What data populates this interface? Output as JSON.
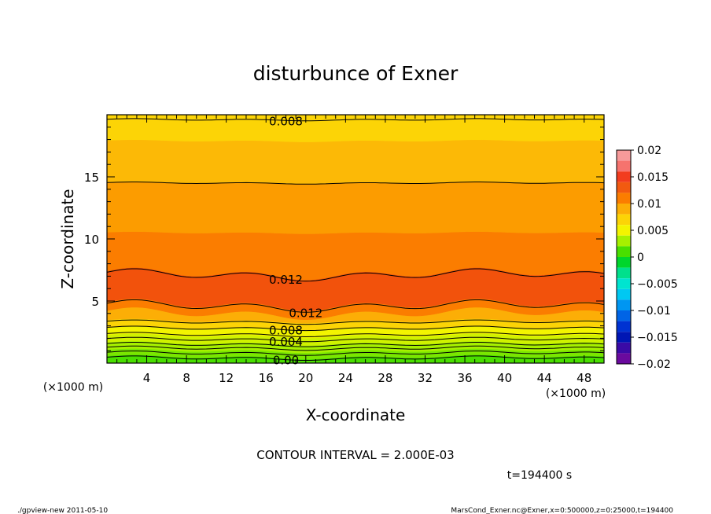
{
  "chart_data": {
    "type": "heatmap",
    "title": "disturbunce of Exner",
    "xlabel": "X-coordinate",
    "ylabel": "Z-coordinate",
    "x_unit_label": "(×1000 m)",
    "y_unit_label": "(×1000 m)",
    "xlim": [
      0,
      50
    ],
    "ylim": [
      0,
      20
    ],
    "x_ticks": [
      4,
      8,
      12,
      16,
      20,
      24,
      28,
      32,
      36,
      40,
      44,
      48
    ],
    "y_ticks": [
      5,
      10,
      15
    ],
    "colorbar": {
      "range": [
        -0.02,
        0.02
      ],
      "tick_labels": [
        "0.02",
        "0.015",
        "0.01",
        "0.005",
        "0",
        "−0.005",
        "−0.01",
        "−0.015",
        "−0.02"
      ],
      "tick_values": [
        0.02,
        0.015,
        0.01,
        0.005,
        0,
        -0.005,
        -0.01,
        -0.015,
        -0.02
      ],
      "bands": [
        {
          "low": 0.018,
          "high": 0.02,
          "color": "#f79a9a"
        },
        {
          "low": 0.016,
          "high": 0.018,
          "color": "#f6736e"
        },
        {
          "low": 0.014,
          "high": 0.016,
          "color": "#f23c1e"
        },
        {
          "low": 0.012,
          "high": 0.014,
          "color": "#f25a10"
        },
        {
          "low": 0.01,
          "high": 0.012,
          "color": "#fb7d00"
        },
        {
          "low": 0.008,
          "high": 0.01,
          "color": "#fcae06"
        },
        {
          "low": 0.006,
          "high": 0.008,
          "color": "#fcd406"
        },
        {
          "low": 0.004,
          "high": 0.006,
          "color": "#f3f400"
        },
        {
          "low": 0.002,
          "high": 0.004,
          "color": "#a6f000"
        },
        {
          "low": 0.0,
          "high": 0.002,
          "color": "#49df00"
        },
        {
          "low": -0.002,
          "high": 0.0,
          "color": "#00d62c"
        },
        {
          "low": -0.004,
          "high": -0.002,
          "color": "#00e08c"
        },
        {
          "low": -0.006,
          "high": -0.004,
          "color": "#00e4d0"
        },
        {
          "low": -0.008,
          "high": -0.006,
          "color": "#00c8f2"
        },
        {
          "low": -0.01,
          "high": -0.008,
          "color": "#0096f2"
        },
        {
          "low": -0.012,
          "high": -0.01,
          "color": "#0064e6"
        },
        {
          "low": -0.014,
          "high": -0.012,
          "color": "#0032d2"
        },
        {
          "low": -0.016,
          "high": -0.014,
          "color": "#0016b4"
        },
        {
          "low": -0.018,
          "high": -0.016,
          "color": "#3a0aa6"
        },
        {
          "low": -0.02,
          "high": -0.018,
          "color": "#6a0a9e"
        }
      ]
    },
    "field_layers": [
      {
        "z_top": 0.5,
        "color": "#49df00"
      },
      {
        "z_top": 1.0,
        "color": "#7ae600"
      },
      {
        "z_top": 1.6,
        "color": "#a6f000"
      },
      {
        "z_top": 2.2,
        "color": "#d0f200"
      },
      {
        "z_top": 2.8,
        "color": "#f3f400"
      },
      {
        "z_top": 3.4,
        "color": "#fcd406"
      },
      {
        "z_top": 4.0,
        "color": "#fcae06"
      },
      {
        "z_top": 4.7,
        "color": "#fb7d00"
      },
      {
        "z_top": 7.2,
        "color": "#f2520c"
      },
      {
        "z_top": 10.5,
        "color": "#fb7d00"
      },
      {
        "z_top": 14.5,
        "color": "#fc9c00"
      },
      {
        "z_top": 17.9,
        "color": "#fcb906"
      },
      {
        "z_top": 20.0,
        "color": "#fcd406"
      }
    ],
    "contours": [
      {
        "level": "0.00",
        "z": 0.4,
        "labeled": true,
        "label_x": 18
      },
      {
        "level": "",
        "z": 0.8,
        "labeled": false
      },
      {
        "level": "",
        "z": 1.2,
        "labeled": false
      },
      {
        "level": "",
        "z": 1.5,
        "labeled": false
      },
      {
        "level": "0.004",
        "z": 1.9,
        "labeled": true,
        "label_x": 18
      },
      {
        "level": "",
        "z": 2.3,
        "labeled": false
      },
      {
        "level": "0.008",
        "z": 2.8,
        "labeled": true,
        "label_x": 18
      },
      {
        "level": "",
        "z": 3.3,
        "labeled": false
      },
      {
        "level": "0.012",
        "z": 4.6,
        "labeled": true,
        "label_x": 20
      },
      {
        "level": "0.012",
        "z": 7.1,
        "labeled": true,
        "label_x": 18
      },
      {
        "level": "",
        "z": 14.5,
        "labeled": false
      },
      {
        "level": "0.008",
        "z": 19.6,
        "labeled": true,
        "label_x": 18
      }
    ],
    "contour_interval_text": "CONTOUR INTERVAL = 2.000E-03",
    "time_text": "t=194400 s"
  },
  "footer": {
    "left": "./gpview-new   2011-05-10",
    "right": "MarsCond_Exner.nc@Exner,x=0:500000,z=0:25000,t=194400"
  }
}
